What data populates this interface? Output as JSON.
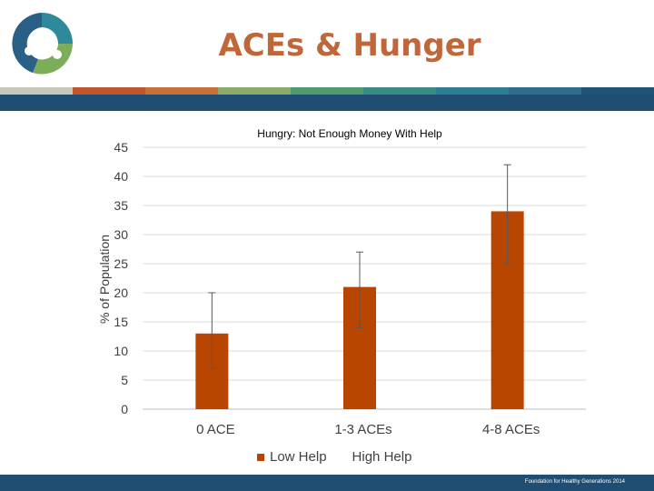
{
  "slide": {
    "title": "ACEs & Hunger",
    "footer": "Foundation for Healthy Generations 2014",
    "title_color": "#c0673a",
    "stripe_colors": [
      "#c8c8b8",
      "#c0562e",
      "#c8703a",
      "#8aab6a",
      "#4f9a6e",
      "#3a8a86",
      "#2e7e92",
      "#2c6e8c",
      "#1f5478"
    ],
    "band_color": "#1f4e72",
    "logo_icon": "people-circle-logo-icon"
  },
  "chart_data": {
    "type": "bar",
    "title": "Hungry: Not Enough Money With Help",
    "ylabel": "% of Population",
    "xlabel": "",
    "categories": [
      "0 ACE",
      "1-3 ACEs",
      "4-8 ACEs"
    ],
    "ylim": [
      0,
      45
    ],
    "yticks": [
      0,
      5,
      10,
      15,
      20,
      25,
      30,
      35,
      40,
      45
    ],
    "grid": true,
    "legend_position": "bottom",
    "series": [
      {
        "name": "Low Help",
        "color": "#b84500",
        "values": [
          13,
          21,
          34
        ],
        "error_low": [
          7,
          14,
          25
        ],
        "error_high": [
          20,
          27,
          42
        ]
      },
      {
        "name": "High Help",
        "color": "",
        "values": [
          null,
          null,
          null
        ]
      }
    ]
  }
}
